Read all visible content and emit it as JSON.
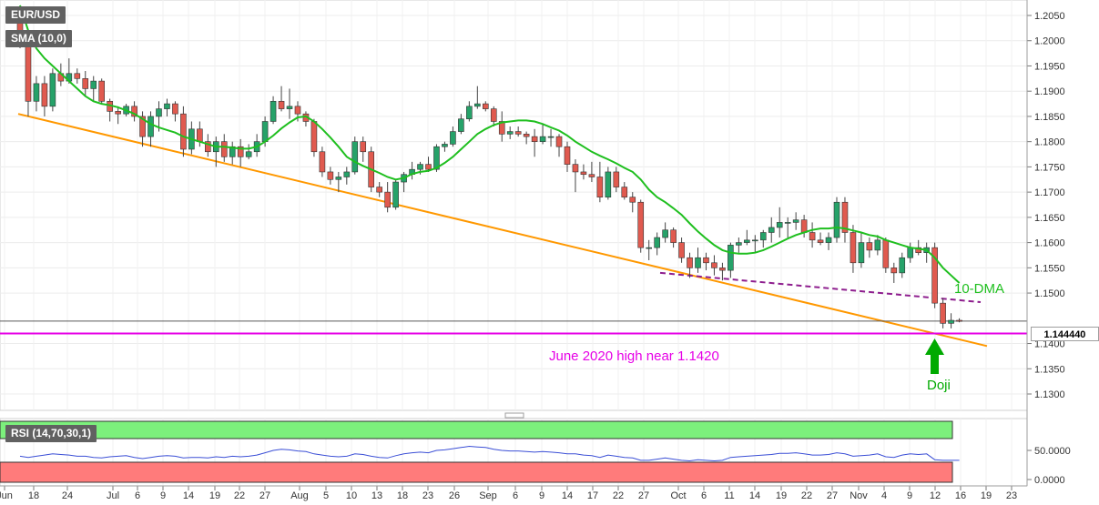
{
  "symbol": "EUR/USD",
  "indicator_label": "SMA (10,0)",
  "rsi_label": "RSI (14,70,30,1)",
  "last_price": "1.144440",
  "annotations": {
    "sma_tag": "10-DMA",
    "support_text": "June 2020 high near 1.1420",
    "doji_text": "Doji"
  },
  "colors": {
    "bull": "#26a269",
    "bear": "#e05a4f",
    "sma": "#1fbf1f",
    "trendline": "#ff9800",
    "resistance_dash": "#8e1e8e",
    "support_line": "#e600e6",
    "arrow": "#00aa00",
    "rsi_line": "#3b4fd6",
    "rsi_overbought": "#7cf07c",
    "rsi_oversold": "#ff7b7b"
  },
  "chart_data": [
    {
      "type": "candlestick",
      "ylim": [
        1.13,
        1.2075
      ],
      "y_ticks": [
        "1.2050",
        "1.2000",
        "1.1950",
        "1.1900",
        "1.1850",
        "1.1800",
        "1.1750",
        "1.1700",
        "1.1650",
        "1.1600",
        "1.1550",
        "1.1500",
        "1.1400",
        "1.1350",
        "1.1300"
      ],
      "x_ticks": [
        "Jun",
        "18",
        "24",
        "Jul",
        "6",
        "9",
        "14",
        "19",
        "22",
        "27",
        "Aug",
        "5",
        "10",
        "13",
        "18",
        "23",
        "26",
        "Sep",
        "6",
        "9",
        "14",
        "17",
        "22",
        "27",
        "Oct",
        "6",
        "11",
        "14",
        "19",
        "22",
        "27",
        "Nov",
        "4",
        "9",
        "12",
        "16",
        "19",
        "23"
      ],
      "ohlc": [
        [
          1.2055,
          1.2065,
          1.1985,
          1.199
        ],
        [
          1.199,
          1.2,
          1.185,
          1.188
        ],
        [
          1.188,
          1.193,
          1.186,
          1.1915
        ],
        [
          1.1915,
          1.193,
          1.185,
          1.187
        ],
        [
          1.187,
          1.1945,
          1.186,
          1.1935
        ],
        [
          1.1935,
          1.1955,
          1.191,
          1.192
        ],
        [
          1.192,
          1.1965,
          1.1915,
          1.1935
        ],
        [
          1.1935,
          1.1945,
          1.1915,
          1.1925
        ],
        [
          1.1925,
          1.194,
          1.189,
          1.1905
        ],
        [
          1.1905,
          1.193,
          1.188,
          1.192
        ],
        [
          1.192,
          1.1925,
          1.1875,
          1.188
        ],
        [
          1.188,
          1.1885,
          1.184,
          1.186
        ],
        [
          1.186,
          1.187,
          1.1835,
          1.1855
        ],
        [
          1.1855,
          1.1875,
          1.185,
          1.187
        ],
        [
          1.187,
          1.188,
          1.184,
          1.185
        ],
        [
          1.185,
          1.186,
          1.179,
          1.181
        ],
        [
          1.181,
          1.186,
          1.179,
          1.185
        ],
        [
          1.185,
          1.188,
          1.182,
          1.1865
        ],
        [
          1.1865,
          1.1885,
          1.185,
          1.1875
        ],
        [
          1.1875,
          1.188,
          1.184,
          1.1855
        ],
        [
          1.1855,
          1.187,
          1.177,
          1.1785
        ],
        [
          1.1785,
          1.184,
          1.1775,
          1.1825
        ],
        [
          1.1825,
          1.184,
          1.179,
          1.18
        ],
        [
          1.18,
          1.1815,
          1.177,
          1.178
        ],
        [
          1.178,
          1.181,
          1.175,
          1.18
        ],
        [
          1.18,
          1.1815,
          1.176,
          1.177
        ],
        [
          1.177,
          1.18,
          1.1755,
          1.179
        ],
        [
          1.179,
          1.1805,
          1.175,
          1.177
        ],
        [
          1.177,
          1.1795,
          1.1765,
          1.178
        ],
        [
          1.178,
          1.1815,
          1.177,
          1.18
        ],
        [
          1.18,
          1.185,
          1.179,
          1.184
        ],
        [
          1.184,
          1.189,
          1.1835,
          1.188
        ],
        [
          1.188,
          1.191,
          1.186,
          1.1865
        ],
        [
          1.1865,
          1.1905,
          1.1845,
          1.187
        ],
        [
          1.187,
          1.188,
          1.184,
          1.1855
        ],
        [
          1.1855,
          1.186,
          1.183,
          1.184
        ],
        [
          1.184,
          1.1845,
          1.177,
          1.178
        ],
        [
          1.178,
          1.179,
          1.173,
          1.174
        ],
        [
          1.174,
          1.175,
          1.1715,
          1.1725
        ],
        [
          1.1725,
          1.174,
          1.17,
          1.173
        ],
        [
          1.173,
          1.175,
          1.1715,
          1.174
        ],
        [
          1.174,
          1.181,
          1.1735,
          1.18
        ],
        [
          1.18,
          1.181,
          1.176,
          1.178
        ],
        [
          1.178,
          1.179,
          1.17,
          1.171
        ],
        [
          1.171,
          1.172,
          1.169,
          1.17
        ],
        [
          1.17,
          1.172,
          1.166,
          1.167
        ],
        [
          1.167,
          1.1725,
          1.1665,
          1.172
        ],
        [
          1.172,
          1.174,
          1.17,
          1.1735
        ],
        [
          1.1735,
          1.176,
          1.1725,
          1.1745
        ],
        [
          1.1745,
          1.176,
          1.1735,
          1.1755
        ],
        [
          1.1755,
          1.177,
          1.174,
          1.1745
        ],
        [
          1.1745,
          1.1795,
          1.174,
          1.179
        ],
        [
          1.179,
          1.18,
          1.178,
          1.1795
        ],
        [
          1.1795,
          1.183,
          1.179,
          1.182
        ],
        [
          1.182,
          1.1855,
          1.1815,
          1.1845
        ],
        [
          1.1845,
          1.188,
          1.184,
          1.187
        ],
        [
          1.187,
          1.191,
          1.1865,
          1.1875
        ],
        [
          1.1875,
          1.188,
          1.186,
          1.1865
        ],
        [
          1.1865,
          1.187,
          1.183,
          1.184
        ],
        [
          1.184,
          1.186,
          1.18,
          1.1815
        ],
        [
          1.1815,
          1.183,
          1.1805,
          1.182
        ],
        [
          1.182,
          1.183,
          1.181,
          1.1815
        ],
        [
          1.1815,
          1.182,
          1.1795,
          1.181
        ],
        [
          1.181,
          1.1825,
          1.177,
          1.18
        ],
        [
          1.18,
          1.1835,
          1.1795,
          1.181
        ],
        [
          1.181,
          1.1825,
          1.179,
          1.181
        ],
        [
          1.181,
          1.1815,
          1.177,
          1.179
        ],
        [
          1.179,
          1.18,
          1.174,
          1.1755
        ],
        [
          1.1755,
          1.1765,
          1.17,
          1.174
        ],
        [
          1.174,
          1.1755,
          1.1725,
          1.1735
        ],
        [
          1.1735,
          1.176,
          1.172,
          1.173
        ],
        [
          1.173,
          1.176,
          1.168,
          1.169
        ],
        [
          1.169,
          1.175,
          1.1685,
          1.174
        ],
        [
          1.174,
          1.175,
          1.17,
          1.171
        ],
        [
          1.171,
          1.172,
          1.1685,
          1.169
        ],
        [
          1.169,
          1.17,
          1.166,
          1.168
        ],
        [
          1.168,
          1.1685,
          1.158,
          1.159
        ],
        [
          1.159,
          1.1605,
          1.1565,
          1.159
        ],
        [
          1.159,
          1.162,
          1.1575,
          1.161
        ],
        [
          1.161,
          1.164,
          1.16,
          1.1625
        ],
        [
          1.1625,
          1.163,
          1.159,
          1.16
        ],
        [
          1.16,
          1.161,
          1.156,
          1.157
        ],
        [
          1.157,
          1.158,
          1.153,
          1.155
        ],
        [
          1.155,
          1.159,
          1.154,
          1.157
        ],
        [
          1.157,
          1.158,
          1.1545,
          1.156
        ],
        [
          1.156,
          1.1575,
          1.1535,
          1.155
        ],
        [
          1.155,
          1.156,
          1.1525,
          1.1545
        ],
        [
          1.1545,
          1.16,
          1.153,
          1.1595
        ],
        [
          1.1595,
          1.161,
          1.158,
          1.16
        ],
        [
          1.16,
          1.1625,
          1.1595,
          1.1605
        ],
        [
          1.1605,
          1.1615,
          1.158,
          1.1605
        ],
        [
          1.1605,
          1.1625,
          1.159,
          1.162
        ],
        [
          1.162,
          1.165,
          1.16,
          1.163
        ],
        [
          1.163,
          1.167,
          1.161,
          1.164
        ],
        [
          1.164,
          1.165,
          1.161,
          1.164
        ],
        [
          1.164,
          1.166,
          1.1625,
          1.1645
        ],
        [
          1.1645,
          1.1655,
          1.161,
          1.162
        ],
        [
          1.162,
          1.164,
          1.159,
          1.1605
        ],
        [
          1.1605,
          1.162,
          1.1595,
          1.16
        ],
        [
          1.16,
          1.162,
          1.1585,
          1.161
        ],
        [
          1.161,
          1.169,
          1.16,
          1.168
        ],
        [
          1.168,
          1.169,
          1.16,
          1.162
        ],
        [
          1.162,
          1.1635,
          1.154,
          1.156
        ],
        [
          1.156,
          1.162,
          1.155,
          1.16
        ],
        [
          1.16,
          1.161,
          1.157,
          1.1585
        ],
        [
          1.1585,
          1.1615,
          1.1575,
          1.1605
        ],
        [
          1.1605,
          1.161,
          1.154,
          1.155
        ],
        [
          1.155,
          1.156,
          1.152,
          1.154
        ],
        [
          1.154,
          1.158,
          1.153,
          1.157
        ],
        [
          1.157,
          1.16,
          1.156,
          1.159
        ],
        [
          1.159,
          1.1605,
          1.1575,
          1.158
        ],
        [
          1.158,
          1.16,
          1.156,
          1.159
        ],
        [
          1.159,
          1.16,
          1.147,
          1.148
        ],
        [
          1.148,
          1.149,
          1.143,
          1.144
        ],
        [
          1.144,
          1.146,
          1.143,
          1.1446
        ],
        [
          1.1446,
          1.145,
          1.1442,
          1.1444
        ]
      ],
      "sma_10": [
        1.207,
        1.202,
        1.1985,
        1.1965,
        1.195,
        1.1935,
        1.192,
        1.1905,
        1.189,
        1.188,
        1.1875,
        1.1872,
        1.1868,
        1.1862,
        1.1855,
        1.1845,
        1.1835,
        1.1828,
        1.1823,
        1.1818,
        1.181,
        1.1805,
        1.18,
        1.1795,
        1.179,
        1.179,
        1.1788,
        1.1786,
        1.1786,
        1.179,
        1.18,
        1.1812,
        1.1826,
        1.1838,
        1.1848,
        1.185,
        1.184,
        1.1825,
        1.1808,
        1.179,
        1.177,
        1.176,
        1.1752,
        1.1745,
        1.1738,
        1.173,
        1.1725,
        1.1728,
        1.1736,
        1.174,
        1.1742,
        1.1748,
        1.1758,
        1.177,
        1.1785,
        1.18,
        1.1815,
        1.1825,
        1.1833,
        1.1838,
        1.184,
        1.1842,
        1.1842,
        1.184,
        1.1835,
        1.1828,
        1.1822,
        1.1812,
        1.18,
        1.179,
        1.178,
        1.1772,
        1.1765,
        1.1757,
        1.1748,
        1.174,
        1.1725,
        1.1705,
        1.169,
        1.168,
        1.1668,
        1.1655,
        1.1638,
        1.1622,
        1.1608,
        1.1595,
        1.1585,
        1.158,
        1.1578,
        1.1578,
        1.158,
        1.1585,
        1.1592,
        1.16,
        1.1608,
        1.1615,
        1.162,
        1.1625,
        1.1628,
        1.1628,
        1.163,
        1.1628,
        1.1624,
        1.162,
        1.1615,
        1.1612,
        1.1605,
        1.16,
        1.1595,
        1.159,
        1.1588,
        1.1585,
        1.157,
        1.155,
        1.1535,
        1.152
      ]
    },
    {
      "type": "line",
      "title": "RSI (14,70,30,1)",
      "ylim": [
        0,
        100
      ],
      "y_ticks": [
        "50.0000",
        "0.0000"
      ],
      "overbought": 70,
      "oversold": 30,
      "values": [
        40,
        38,
        40,
        42,
        44,
        43,
        42,
        40,
        40,
        38,
        37,
        39,
        40,
        41,
        38,
        36,
        38,
        40,
        41,
        40,
        37,
        38,
        38,
        37,
        39,
        38,
        40,
        39,
        40,
        42,
        46,
        50,
        52,
        51,
        49,
        48,
        44,
        42,
        40,
        39,
        40,
        44,
        43,
        40,
        38,
        37,
        41,
        44,
        46,
        47,
        46,
        50,
        51,
        53,
        55,
        57,
        56,
        55,
        52,
        50,
        49,
        49,
        48,
        47,
        48,
        47,
        46,
        44,
        44,
        42,
        41,
        38,
        42,
        40,
        38,
        37,
        33,
        33,
        35,
        37,
        35,
        33,
        32,
        34,
        33,
        32,
        33,
        38,
        39,
        40,
        41,
        42,
        43,
        45,
        45,
        46,
        44,
        42,
        42,
        43,
        46,
        44,
        40,
        41,
        42,
        44,
        39,
        38,
        42,
        44,
        43,
        44,
        34,
        33,
        33,
        33
      ]
    }
  ]
}
